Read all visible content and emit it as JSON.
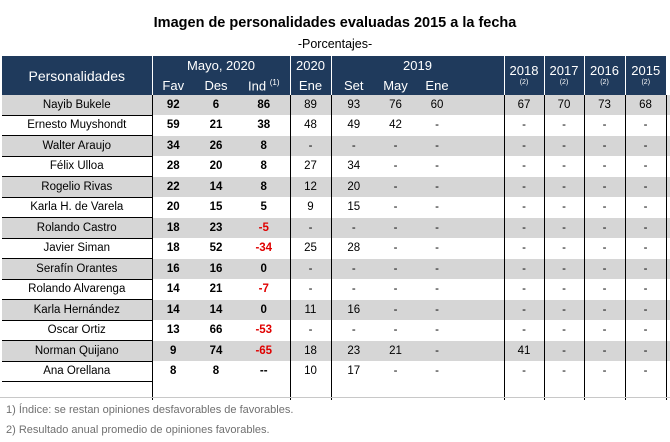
{
  "title": "Imagen de personalidades evaluadas 2015 a la fecha",
  "subtitle": "-Porcentajes-",
  "header": {
    "personalidades": "Personalidades",
    "mayo_2020": "Mayo, 2020",
    "fav": "Fav",
    "des": "Des",
    "ind": "Ind",
    "ind_note": "(1)",
    "y2020": "2020",
    "y2020_note": "(2)",
    "ene": "Ene",
    "y2019": "2019",
    "set": "Set",
    "may": "May",
    "ene2": "Ene",
    "y2018": "2018",
    "y2017": "2017",
    "y2016": "2016",
    "y2015": "2015",
    "note2": "(2)"
  },
  "rows": [
    {
      "name": "Nayib Bukele",
      "fav": "92",
      "des": "6",
      "ind": "86",
      "e2020": "89",
      "set": "93",
      "may": "76",
      "ene": "60",
      "y2018": "67",
      "y2017": "70",
      "y2016": "73",
      "y2015": "68"
    },
    {
      "name": "Ernesto Muyshondt",
      "fav": "59",
      "des": "21",
      "ind": "38",
      "e2020": "48",
      "set": "49",
      "may": "42",
      "ene": "-",
      "y2018": "-",
      "y2017": "-",
      "y2016": "-",
      "y2015": "-"
    },
    {
      "name": "Walter Araujo",
      "fav": "34",
      "des": "26",
      "ind": "8",
      "e2020": "-",
      "set": "-",
      "may": "-",
      "ene": "-",
      "y2018": "-",
      "y2017": "-",
      "y2016": "-",
      "y2015": "-"
    },
    {
      "name": "Félix Ulloa",
      "fav": "28",
      "des": "20",
      "ind": "8",
      "e2020": "27",
      "set": "34",
      "may": "-",
      "ene": "-",
      "y2018": "-",
      "y2017": "-",
      "y2016": "-",
      "y2015": "-"
    },
    {
      "name": "Rogelio Rivas",
      "fav": "22",
      "des": "14",
      "ind": "8",
      "e2020": "12",
      "set": "20",
      "may": "-",
      "ene": "-",
      "y2018": "-",
      "y2017": "-",
      "y2016": "-",
      "y2015": "-"
    },
    {
      "name": "Karla H. de Varela",
      "fav": "20",
      "des": "15",
      "ind": "5",
      "e2020": "9",
      "set": "15",
      "may": "-",
      "ene": "-",
      "y2018": "-",
      "y2017": "-",
      "y2016": "-",
      "y2015": "-"
    },
    {
      "name": "Rolando Castro",
      "fav": "18",
      "des": "23",
      "ind": "-5",
      "e2020": "-",
      "set": "-",
      "may": "-",
      "ene": "-",
      "y2018": "-",
      "y2017": "-",
      "y2016": "-",
      "y2015": "-"
    },
    {
      "name": "Javier Siman",
      "fav": "18",
      "des": "52",
      "ind": "-34",
      "e2020": "25",
      "set": "28",
      "may": "-",
      "ene": "-",
      "y2018": "-",
      "y2017": "-",
      "y2016": "-",
      "y2015": "-"
    },
    {
      "name": "Serafín Orantes",
      "fav": "16",
      "des": "16",
      "ind": "0",
      "e2020": "-",
      "set": "-",
      "may": "-",
      "ene": "-",
      "y2018": "-",
      "y2017": "-",
      "y2016": "-",
      "y2015": "-"
    },
    {
      "name": "Rolando Alvarenga",
      "fav": "14",
      "des": "21",
      "ind": "-7",
      "e2020": "-",
      "set": "-",
      "may": "-",
      "ene": "-",
      "y2018": "-",
      "y2017": "-",
      "y2016": "-",
      "y2015": "-"
    },
    {
      "name": "Karla Hernández",
      "fav": "14",
      "des": "14",
      "ind": "0",
      "e2020": "11",
      "set": "16",
      "may": "-",
      "ene": "-",
      "y2018": "-",
      "y2017": "-",
      "y2016": "-",
      "y2015": "-"
    },
    {
      "name": "Oscar Ortiz",
      "fav": "13",
      "des": "66",
      "ind": "-53",
      "e2020": "-",
      "set": "-",
      "may": "-",
      "ene": "-",
      "y2018": "-",
      "y2017": "-",
      "y2016": "-",
      "y2015": "-"
    },
    {
      "name": "Norman Quijano",
      "fav": "9",
      "des": "74",
      "ind": "-65",
      "e2020": "18",
      "set": "23",
      "may": "21",
      "ene": "-",
      "y2018": "41",
      "y2017": "-",
      "y2016": "-",
      "y2015": "-"
    },
    {
      "name": "Ana Orellana",
      "fav": "8",
      "des": "8",
      "ind": "--",
      "e2020": "10",
      "set": "17",
      "may": "-",
      "ene": "-",
      "y2018": "-",
      "y2017": "-",
      "y2016": "-",
      "y2015": "-"
    }
  ],
  "footnotes": [
    "1) Índice: se restan opiniones desfavorables de favorables.",
    "2) Resultado anual promedio de opiniones favorables."
  ],
  "colors": {
    "header_bg": "#1f3a5c",
    "stripe": "#d6d6d6",
    "negative": "#e00000"
  }
}
